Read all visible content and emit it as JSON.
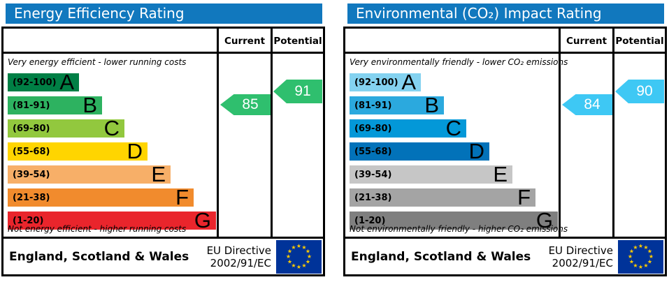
{
  "colors": {
    "header_bar": "#1178be",
    "border": "#000000"
  },
  "eu_flag": {
    "background": "#003399",
    "star_color": "#ffcc00",
    "star_glyph": "★"
  },
  "charts": [
    {
      "title": "Energy Efficiency Rating",
      "header": {
        "current": "Current",
        "potential": "Potential"
      },
      "top_caption": "Very energy efficient - lower running costs",
      "bottom_caption": "Not energy efficient - higher running costs",
      "bands": [
        {
          "range": "(92-100)",
          "letter": "A",
          "color": "#007f45"
        },
        {
          "range": "(81-91)",
          "letter": "B",
          "color": "#2db260"
        },
        {
          "range": "(69-80)",
          "letter": "C",
          "color": "#92c83e"
        },
        {
          "range": "(55-68)",
          "letter": "D",
          "color": "#ffd500"
        },
        {
          "range": "(39-54)",
          "letter": "E",
          "color": "#f7af68"
        },
        {
          "range": "(21-38)",
          "letter": "F",
          "color": "#f18b2d"
        },
        {
          "range": "(1-20)",
          "letter": "G",
          "color": "#e9252c"
        }
      ],
      "current": {
        "value": "85",
        "color": "#2fbf6e"
      },
      "potential": {
        "value": "91",
        "color": "#2fbf6e"
      },
      "footer": {
        "region": "England, Scotland & Wales",
        "directive_line1": "EU Directive",
        "directive_line2": "2002/91/EC"
      }
    },
    {
      "title": "Environmental (CO₂) Impact Rating",
      "header": {
        "current": "Current",
        "potential": "Potential"
      },
      "top_caption": "Very environmentally friendly - lower CO₂ emissions",
      "bottom_caption": "Not environmentally friendly - higher CO₂ emissions",
      "bands": [
        {
          "range": "(92-100)",
          "letter": "A",
          "color": "#84d2f0"
        },
        {
          "range": "(81-91)",
          "letter": "B",
          "color": "#2ba9de"
        },
        {
          "range": "(69-80)",
          "letter": "C",
          "color": "#0398d8"
        },
        {
          "range": "(55-68)",
          "letter": "D",
          "color": "#0272b9"
        },
        {
          "range": "(39-54)",
          "letter": "E",
          "color": "#c6c6c6"
        },
        {
          "range": "(21-38)",
          "letter": "F",
          "color": "#a4a4a4"
        },
        {
          "range": "(1-20)",
          "letter": "G",
          "color": "#7f7f7f"
        }
      ],
      "current": {
        "value": "84",
        "color": "#3ec8f4"
      },
      "potential": {
        "value": "90",
        "color": "#3ec8f4"
      },
      "footer": {
        "region": "England, Scotland & Wales",
        "directive_line1": "EU Directive",
        "directive_line2": "2002/91/EC"
      }
    }
  ],
  "chart_data": [
    {
      "type": "bar",
      "title": "Energy Efficiency Rating",
      "categories": [
        "A",
        "B",
        "C",
        "D",
        "E",
        "F",
        "G"
      ],
      "band_ranges": [
        "92-100",
        "81-91",
        "69-80",
        "55-68",
        "39-54",
        "21-38",
        "1-20"
      ],
      "scale": [
        1,
        100
      ],
      "current": 85,
      "current_band": "B",
      "potential": 91,
      "potential_band": "B",
      "annotations": [
        "Very energy efficient - lower running costs",
        "Not energy efficient - higher running costs",
        "England, Scotland & Wales",
        "EU Directive 2002/91/EC"
      ]
    },
    {
      "type": "bar",
      "title": "Environmental (CO₂) Impact Rating",
      "categories": [
        "A",
        "B",
        "C",
        "D",
        "E",
        "F",
        "G"
      ],
      "band_ranges": [
        "92-100",
        "81-91",
        "69-80",
        "55-68",
        "39-54",
        "21-38",
        "1-20"
      ],
      "scale": [
        1,
        100
      ],
      "current": 84,
      "current_band": "B",
      "potential": 90,
      "potential_band": "B",
      "annotations": [
        "Very environmentally friendly - lower CO₂ emissions",
        "Not environmentally friendly - higher CO₂ emissions",
        "England, Scotland & Wales",
        "EU Directive 2002/91/EC"
      ]
    }
  ]
}
